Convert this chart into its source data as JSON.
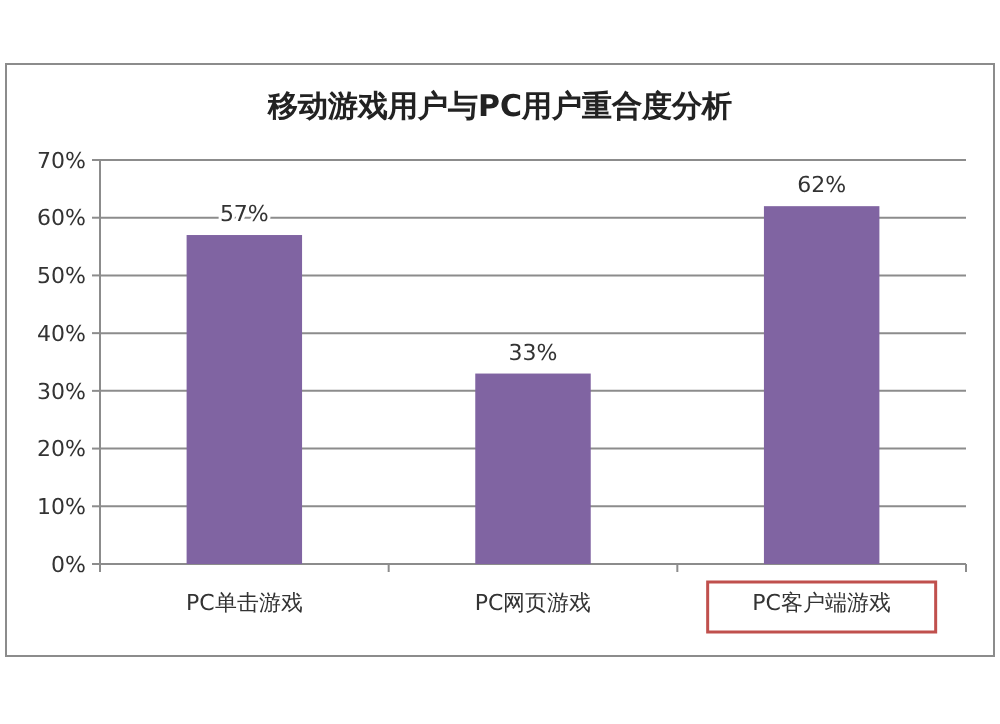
{
  "chart_data": {
    "type": "bar",
    "title": "移动游戏用户与PC用户重合度分析",
    "categories": [
      "PC单击游戏",
      "PC网页游戏",
      "PC客户端游戏"
    ],
    "values": [
      57,
      33,
      62
    ],
    "color": "#8064a2",
    "value_labels": [
      "57%",
      "33%",
      "62%"
    ],
    "ylim": [
      0,
      70
    ],
    "yticks": [
      {
        "value": 0,
        "label": "0%"
      },
      {
        "value": 10,
        "label": "10%"
      },
      {
        "value": 20,
        "label": "20%"
      },
      {
        "value": 30,
        "label": "30%"
      },
      {
        "value": 40,
        "label": "40%"
      },
      {
        "value": 50,
        "label": "50%"
      },
      {
        "value": 60,
        "label": "60%"
      },
      {
        "value": 70,
        "label": "70%"
      }
    ],
    "grid": "y"
  }
}
